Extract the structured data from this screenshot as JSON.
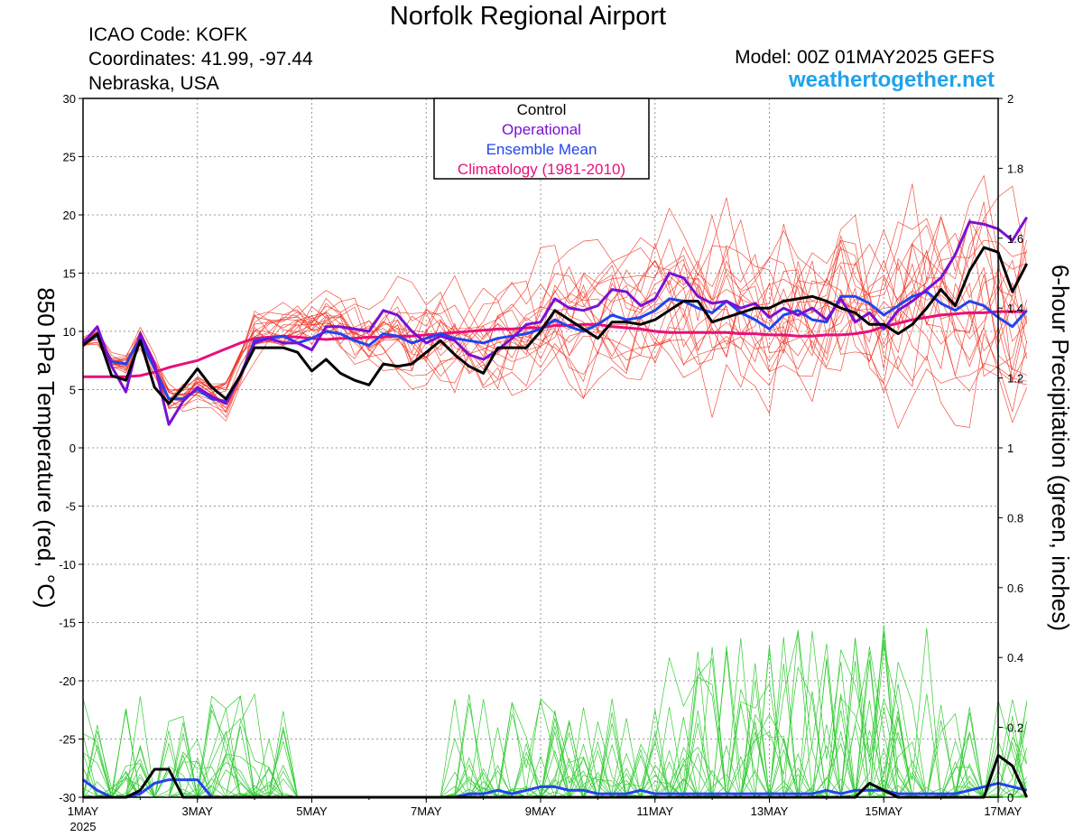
{
  "header": {
    "title": "Norfolk Regional Airport",
    "icao": "ICAO Code: KOFK",
    "coords": "Coordinates: 41.99, -97.44",
    "region": "Nebraska, USA",
    "model": "Model: 00Z 01MAY2025 GEFS",
    "brand": "weathertogether.net"
  },
  "colors": {
    "control": "#000000",
    "operational": "#7a10d4",
    "ensemble_mean": "#2244ee",
    "climatology": "#e8107a",
    "member_temp": "#ee3322",
    "member_precip": "#33cc33",
    "brand": "#1ea3ef"
  },
  "chart_data": {
    "type": "line",
    "title": "Norfolk Regional Airport",
    "ylabel": "850 hPa Temperature (red, °C)",
    "y2label": "6-hour Precipitation (green, inches)",
    "ylim": [
      -30,
      30
    ],
    "y2lim": [
      0,
      2
    ],
    "yticks": [
      30,
      25,
      20,
      15,
      10,
      5,
      0,
      -5,
      -10,
      -15,
      -20,
      -25,
      -30
    ],
    "y2ticks": [
      2,
      1.8,
      1.6,
      1.4,
      1.2,
      1,
      0.8,
      0.6,
      0.4,
      0.2,
      0
    ],
    "xlim": [
      0,
      16
    ],
    "x_unit": "days (6-hour steps) from 1MAY 2025 00Z",
    "xticks": [
      {
        "x": 0,
        "label": "1MAY",
        "sub": "2025"
      },
      {
        "x": 2,
        "label": "3MAY"
      },
      {
        "x": 4,
        "label": "5MAY"
      },
      {
        "x": 6,
        "label": "7MAY"
      },
      {
        "x": 8,
        "label": "9MAY"
      },
      {
        "x": 10,
        "label": "11MAY"
      },
      {
        "x": 12,
        "label": "13MAY"
      },
      {
        "x": 14,
        "label": "15MAY"
      },
      {
        "x": 16,
        "label": "17MAY"
      }
    ],
    "legend": {
      "placement": "top-center",
      "entries": [
        {
          "label": "Control",
          "color": "#000000"
        },
        {
          "label": "Operational",
          "color": "#7a10d4"
        },
        {
          "label": "Ensemble Mean",
          "color": "#2244ee"
        },
        {
          "label": "Climatology (1981-2010)",
          "color": "#e8107a"
        }
      ]
    },
    "series": [
      {
        "name": "Control",
        "axis": "temp",
        "color": "#000000",
        "step": 0.25,
        "values": [
          8.8,
          9.8,
          6.2,
          5.8,
          9.2,
          5.2,
          3.8,
          5.2,
          6.8,
          5.2,
          4.2,
          6.2,
          8.6,
          8.6,
          8.6,
          8.2,
          6.6,
          7.6,
          6.4,
          5.8,
          5.4,
          7.2,
          7.0,
          7.2,
          8.2,
          9.2,
          8.0,
          7.0,
          6.4,
          8.6,
          8.6,
          8.6,
          10.0,
          11.8,
          11.0,
          10.2,
          9.4,
          10.8,
          10.8,
          10.6,
          11.0,
          11.8,
          12.6,
          12.6,
          10.8,
          11.2,
          11.6,
          12.0,
          12.0,
          12.6,
          12.8,
          13.0,
          12.6,
          12.0,
          11.6,
          10.6,
          10.6,
          9.8,
          10.6,
          12.0,
          13.6,
          12.2,
          15.2,
          17.2,
          16.8,
          13.4,
          15.8
        ]
      },
      {
        "name": "Operational",
        "axis": "temp",
        "color": "#7a10d4",
        "step": 0.25,
        "values": [
          9.0,
          10.4,
          7.0,
          4.8,
          9.8,
          7.2,
          2.0,
          4.0,
          5.2,
          4.4,
          3.8,
          6.2,
          9.0,
          9.4,
          9.0,
          9.0,
          8.4,
          10.4,
          10.4,
          10.2,
          10.0,
          11.8,
          11.4,
          10.0,
          9.0,
          9.6,
          9.2,
          8.0,
          7.6,
          8.4,
          9.4,
          10.6,
          10.8,
          12.8,
          12.0,
          11.8,
          12.2,
          13.6,
          13.4,
          12.2,
          12.8,
          15.0,
          14.6,
          13.0,
          12.4,
          12.6,
          12.0,
          12.4,
          11.2,
          12.0,
          11.4,
          12.0,
          11.0,
          12.8,
          10.8,
          11.6,
          10.2,
          11.8,
          12.6,
          13.6,
          14.6,
          16.6,
          19.4,
          19.2,
          18.8,
          17.8,
          19.8
        ]
      },
      {
        "name": "Ensemble Mean",
        "axis": "temp",
        "color": "#2244ee",
        "step": 0.25,
        "values": [
          9.0,
          9.6,
          7.4,
          7.2,
          9.4,
          6.8,
          4.2,
          4.2,
          5.0,
          4.2,
          4.0,
          6.2,
          9.2,
          9.4,
          9.6,
          9.0,
          9.4,
          10.0,
          9.8,
          9.2,
          8.8,
          9.8,
          9.6,
          9.0,
          9.4,
          9.8,
          9.4,
          9.2,
          9.0,
          9.4,
          9.6,
          9.8,
          10.2,
          11.0,
          10.4,
          10.0,
          10.6,
          11.4,
          11.0,
          11.2,
          11.8,
          12.8,
          12.6,
          12.0,
          11.6,
          12.6,
          11.6,
          11.0,
          10.2,
          11.4,
          11.8,
          11.0,
          10.8,
          13.0,
          13.0,
          12.4,
          11.4,
          12.2,
          13.0,
          13.4,
          12.4,
          11.8,
          12.6,
          12.2,
          11.2,
          10.4,
          11.8
        ]
      },
      {
        "name": "Climatology (1981-2010)",
        "axis": "temp",
        "color": "#e8107a",
        "step": 0.25,
        "values": [
          6.1,
          6.1,
          6.1,
          6.1,
          6.2,
          6.5,
          6.9,
          7.2,
          7.5,
          8.0,
          8.5,
          9.0,
          9.4,
          9.5,
          9.6,
          9.5,
          9.4,
          9.3,
          9.4,
          9.4,
          9.5,
          9.5,
          9.6,
          9.6,
          9.7,
          9.8,
          9.9,
          10.0,
          10.1,
          10.2,
          10.2,
          10.3,
          10.3,
          10.5,
          10.5,
          10.6,
          10.6,
          10.4,
          10.3,
          10.2,
          10.0,
          9.9,
          9.9,
          9.9,
          9.9,
          9.9,
          9.8,
          9.8,
          9.7,
          9.7,
          9.6,
          9.6,
          9.7,
          9.7,
          9.8,
          10.0,
          10.4,
          10.7,
          11.0,
          11.2,
          11.4,
          11.5,
          11.6,
          11.6,
          11.7,
          11.7,
          11.7
        ]
      },
      {
        "name": "Control precipitation",
        "axis": "precip",
        "color": "#000000",
        "step": 0.25,
        "values": [
          0,
          0,
          0,
          0,
          0.02,
          0.08,
          0.08,
          0,
          0,
          0,
          0,
          0,
          0,
          0,
          0,
          0,
          0,
          0,
          0,
          0,
          0,
          0,
          0,
          0,
          0,
          0,
          0,
          0,
          0,
          0,
          0,
          0,
          0,
          0,
          0,
          0,
          0,
          0,
          0,
          0,
          0,
          0,
          0,
          0,
          0,
          0,
          0,
          0,
          0,
          0,
          0,
          0,
          0,
          0,
          0,
          0.04,
          0.02,
          0,
          0,
          0,
          0,
          0,
          0,
          0,
          0.12,
          0.09,
          0
        ]
      },
      {
        "name": "Ensemble Mean precipitation",
        "axis": "precip",
        "color": "#2244ee",
        "step": 0.25,
        "values": [
          0.05,
          0.02,
          0,
          0,
          0.01,
          0.04,
          0.05,
          0.05,
          0.05,
          0,
          0,
          0,
          0,
          0,
          0,
          0,
          0,
          0,
          0,
          0,
          0,
          0,
          0,
          0,
          0,
          0,
          0,
          0.01,
          0.01,
          0.02,
          0.01,
          0.02,
          0.03,
          0.03,
          0.02,
          0.02,
          0.01,
          0.01,
          0.01,
          0.02,
          0.01,
          0.01,
          0.01,
          0.01,
          0.01,
          0.01,
          0.01,
          0.01,
          0.01,
          0.01,
          0.01,
          0.01,
          0.02,
          0.01,
          0.02,
          0.02,
          0.02,
          0.01,
          0.01,
          0.01,
          0.01,
          0.01,
          0.02,
          0.03,
          0.04,
          0.03,
          0.02
        ]
      }
    ]
  }
}
